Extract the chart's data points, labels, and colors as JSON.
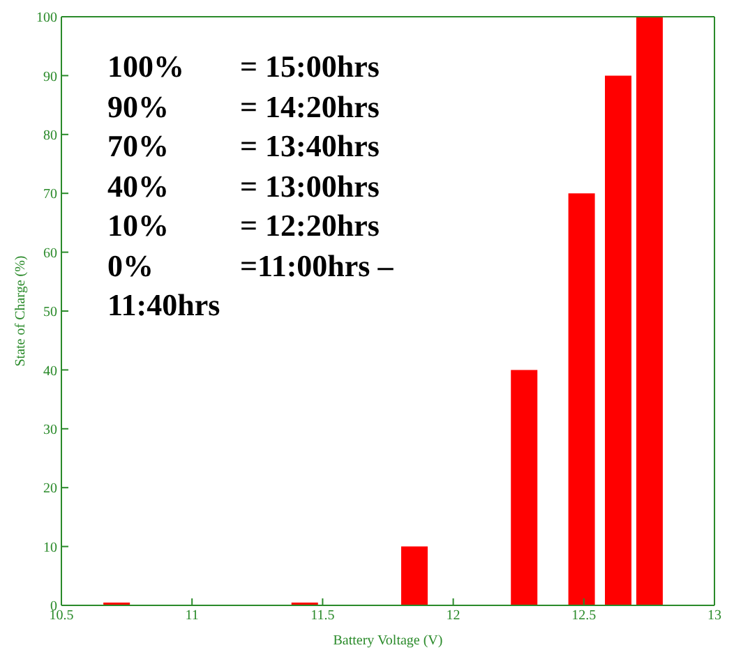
{
  "chart_data": {
    "type": "bar",
    "xlabel": "Battery Voltage (V)",
    "ylabel": "State of Charge (%)",
    "x": [
      10.71,
      11.43,
      11.85,
      12.27,
      12.49,
      12.63,
      12.75
    ],
    "values": [
      0,
      0,
      10,
      40,
      70,
      90,
      100
    ],
    "color": "#ff0000",
    "xlim": [
      10.5,
      13
    ],
    "xticks": [
      10.5,
      11,
      11.5,
      12,
      12.5,
      13
    ],
    "ylim": [
      0,
      100
    ],
    "yticks": [
      0,
      10,
      20,
      30,
      40,
      50,
      60,
      70,
      80,
      90,
      100
    ],
    "grid": false,
    "legend": false,
    "annotations": [
      "100% = 15:00hrs",
      "90% = 14:20hrs",
      "70% = 13:40hrs",
      "40% = 13:00hrs",
      "10% = 12:20hrs",
      "0% =11:00hrs –",
      "11:40hrs"
    ]
  }
}
